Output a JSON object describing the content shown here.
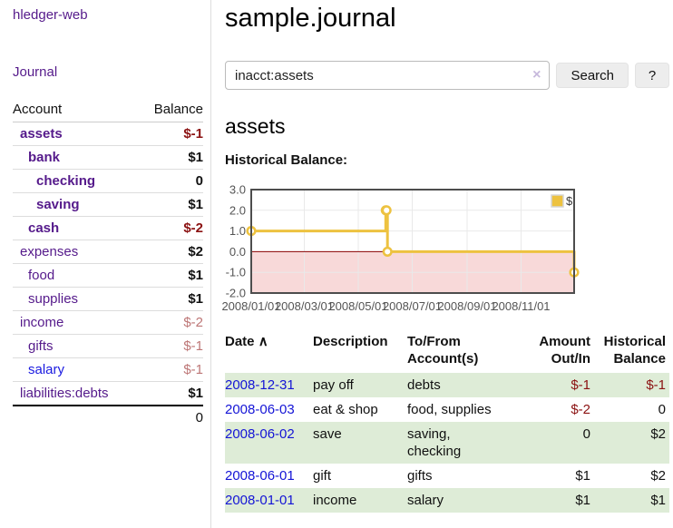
{
  "colors": {
    "link_purple": "#551a8b",
    "link_blue": "#1a1ae0",
    "negative_red": "#8b1212",
    "negative_muted": "#bd7676",
    "row_green": "#deecd7",
    "series_yellow": "#edc240"
  },
  "sidebar": {
    "brand": "hledger-web",
    "nav_journal": "Journal",
    "accounts_table": {
      "headers": [
        "Account",
        "Balance"
      ],
      "rows": [
        {
          "name": "assets",
          "indent": 0,
          "emph": true,
          "balance": "$-1",
          "balance_tone": "negative"
        },
        {
          "name": "bank",
          "indent": 1,
          "emph": true,
          "balance": "$1",
          "balance_tone": "positive"
        },
        {
          "name": "checking",
          "indent": 2,
          "emph": true,
          "balance": "0",
          "balance_tone": "positive"
        },
        {
          "name": "saving",
          "indent": 2,
          "emph": true,
          "balance": "$1",
          "balance_tone": "positive"
        },
        {
          "name": "cash",
          "indent": 1,
          "emph": true,
          "balance": "$-2",
          "balance_tone": "negative"
        },
        {
          "name": "expenses",
          "indent": 0,
          "emph": false,
          "balance": "$2",
          "balance_tone": "positive"
        },
        {
          "name": "food",
          "indent": 1,
          "emph": false,
          "balance": "$1",
          "balance_tone": "positive"
        },
        {
          "name": "supplies",
          "indent": 1,
          "emph": false,
          "balance": "$1",
          "balance_tone": "positive"
        },
        {
          "name": "income",
          "indent": 0,
          "emph": false,
          "balance": "$-2",
          "balance_tone": "negative-muted"
        },
        {
          "name": "gifts",
          "indent": 1,
          "emph": false,
          "balance": "$-1",
          "balance_tone": "negative-muted"
        },
        {
          "name": "salary",
          "indent": 1,
          "emph": false,
          "balance": "$-1",
          "balance_tone": "negative-muted",
          "link": "new"
        },
        {
          "name": "liabilities:debts",
          "indent": 0,
          "emph": false,
          "balance": "$1",
          "balance_tone": "positive"
        }
      ],
      "total": "0"
    }
  },
  "page": {
    "title": "sample.journal"
  },
  "search": {
    "value": "inacct:assets",
    "clear_icon": "×",
    "button_label": "Search",
    "help_label": "?"
  },
  "account_page": {
    "title": "assets",
    "chart_label": "Historical Balance:"
  },
  "chart_data": {
    "type": "line",
    "step": true,
    "title": "Historical Balance:",
    "series": [
      {
        "name": "$",
        "color": "#edc240",
        "points": [
          [
            "2008-01-01",
            1
          ],
          [
            "2008-06-01",
            2
          ],
          [
            "2008-06-02",
            2
          ],
          [
            "2008-06-03",
            0
          ],
          [
            "2008-12-31",
            -1
          ]
        ]
      }
    ],
    "x_domain": [
      "2008-01-01",
      "2008-12-31"
    ],
    "xticks": [
      "2008/01/01",
      "2008/03/01",
      "2008/05/01",
      "2008/07/01",
      "2008/09/01",
      "2008/11/01"
    ],
    "yticks": [
      "3.0",
      "2.0",
      "1.0",
      "0.0",
      "-1.0",
      "-2.0"
    ],
    "ylim": [
      -2,
      3
    ],
    "grid": true,
    "legend_position": "top-right",
    "negative_fill": "#f8d9d9",
    "zero_line_color": "#8b0000",
    "axis_color": "#545454"
  },
  "table": {
    "sort_indicator": "∧",
    "headers": [
      "Date",
      "Description",
      "To/From\nAccount(s)",
      "Amount\nOut/In",
      "Historical\nBalance"
    ],
    "rows": [
      {
        "date": "2008-12-31",
        "description": "pay off",
        "accounts": "debts",
        "amount": "$-1",
        "amount_negative": true,
        "balance": "$-1",
        "balance_negative": true,
        "shaded": true
      },
      {
        "date": "2008-06-03",
        "description": "eat & shop",
        "accounts": "food, supplies",
        "amount": "$-2",
        "amount_negative": true,
        "balance": "0",
        "balance_negative": false,
        "shaded": false
      },
      {
        "date": "2008-06-02",
        "description": "save",
        "accounts": "saving, checking",
        "amount": "0",
        "amount_negative": false,
        "balance": "$2",
        "balance_negative": false,
        "shaded": true
      },
      {
        "date": "2008-06-01",
        "description": "gift",
        "accounts": "gifts",
        "amount": "$1",
        "amount_negative": false,
        "balance": "$2",
        "balance_negative": false,
        "shaded": false
      },
      {
        "date": "2008-01-01",
        "description": "income",
        "accounts": "salary",
        "amount": "$1",
        "amount_negative": false,
        "balance": "$1",
        "balance_negative": false,
        "shaded": true
      }
    ]
  }
}
